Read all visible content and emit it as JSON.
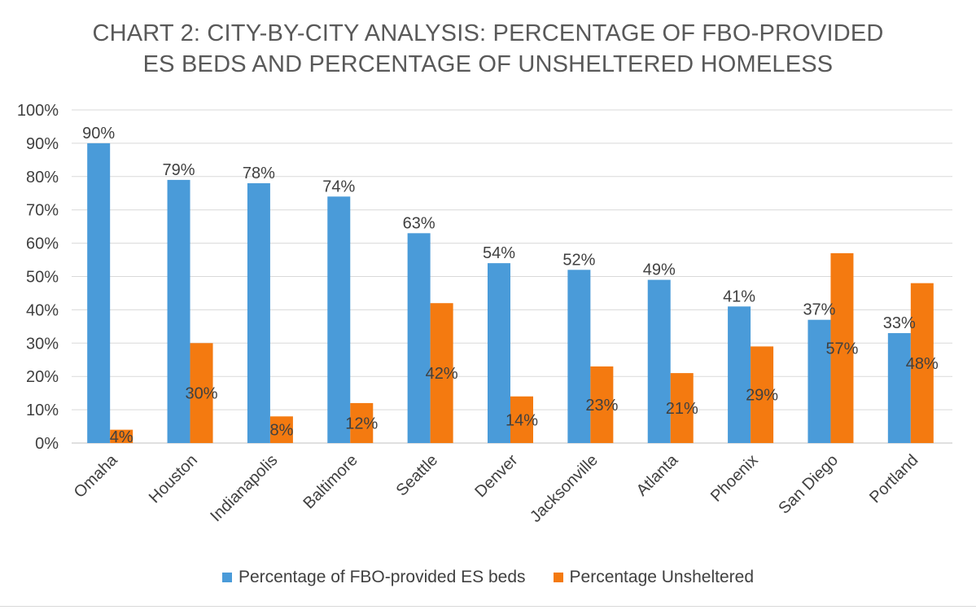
{
  "title_line1": "CHART 2:  CITY-BY-CITY ANALYSIS: PERCENTAGE OF FBO-PROVIDED",
  "title_line2": "ES BEDS AND PERCENTAGE OF UNSHELTERED HOMELESS",
  "chart_data": {
    "type": "bar",
    "title": "CHART 2:  CITY-BY-CITY ANALYSIS: PERCENTAGE OF FBO-PROVIDED ES BEDS AND PERCENTAGE OF UNSHELTERED HOMELESS",
    "xlabel": "",
    "ylabel": "",
    "ylim": [
      0,
      100
    ],
    "yticks": [
      "0%",
      "10%",
      "20%",
      "30%",
      "40%",
      "50%",
      "60%",
      "70%",
      "80%",
      "90%",
      "100%"
    ],
    "grid": true,
    "legend_placement": "bottom",
    "categories": [
      "Omaha",
      "Houston",
      "Indianapolis",
      "Baltimore",
      "Seattle",
      "Denver",
      "Jacksonville",
      "Atlanta",
      "Phoenix",
      "San Diego",
      "Portland"
    ],
    "series": [
      {
        "name": "Percentage of FBO-provided ES beds",
        "color": "#4a9bd9",
        "values": [
          90,
          79,
          78,
          74,
          63,
          54,
          52,
          49,
          41,
          37,
          33
        ],
        "labels": [
          "90%",
          "79%",
          "78%",
          "74%",
          "63%",
          "54%",
          "52%",
          "49%",
          "41%",
          "37%",
          "33%"
        ]
      },
      {
        "name": "Percentage Unsheltered",
        "color": "#f47a10",
        "values": [
          4,
          30,
          8,
          12,
          42,
          14,
          23,
          21,
          29,
          57,
          48
        ],
        "labels": [
          "4%",
          "30%",
          "8%",
          "12%",
          "42%",
          "14%",
          "23%",
          "21%",
          "29%",
          "57%",
          "48%"
        ]
      }
    ]
  }
}
